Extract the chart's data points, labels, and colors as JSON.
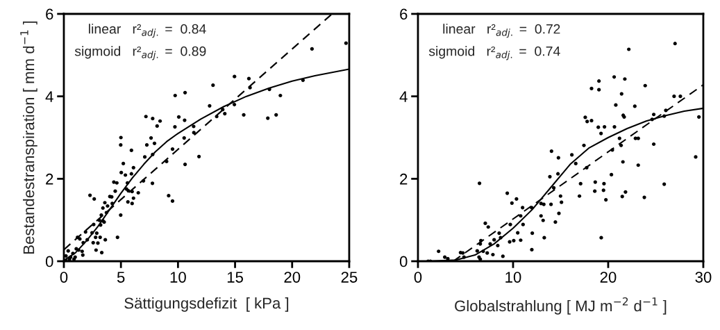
{
  "chart_data": [
    {
      "type": "scatter",
      "xlabel": "Sättigungsdefizit  [ kPa ]",
      "ylabel": "Bestandestranspiration [ mm d$^{−1}$ ]",
      "xlim": [
        0,
        25
      ],
      "xticks": [
        0,
        5,
        10,
        15,
        20,
        25
      ],
      "ylim": [
        0,
        6
      ],
      "yticks": [
        0,
        2,
        4,
        6
      ],
      "grid": false,
      "annotations": [
        "linear   r²$_{adj.}$ =  0.84",
        "sigmoid   r²$_{adj.}$ =  0.89"
      ],
      "series": [
        {
          "color": "#000000",
          "marker": "circle",
          "x": [
            9.75,
            10.62,
            7.19,
            7.78,
            8.43,
            8.17,
            10.07,
            10.58,
            9.73,
            11.37,
            11.39,
            10.54,
            9.52,
            9.0,
            10.62,
            11.84,
            5.0,
            4.98,
            5.92,
            7.27,
            7.64,
            7.94,
            7.78,
            7.09,
            5.21,
            6.1,
            5.03,
            5.39,
            5.92,
            4.38,
            4.64,
            5.57,
            6.97,
            7.76,
            4.5,
            5.49,
            5.65,
            5.98,
            6.52,
            4.19,
            4.03,
            6.1,
            5.61,
            5.98,
            2.29,
            2.66,
            9.18,
            9.52,
            3.59,
            3.83,
            4.24,
            3.42,
            3.73,
            3.28,
            3.42,
            3.12,
            3.53,
            2.61,
            3.22,
            4.98,
            1.9,
            2.47,
            2.88,
            1.2,
            1.4,
            2.78,
            3.18,
            3.63,
            4.7,
            2.05,
            1.7,
            2.57,
            2.98,
            2.82,
            3.32,
            1.09,
            1.3,
            1.6,
            1.66,
            0.38,
            0.79,
            0.18,
            0.59,
            0.99,
            0.49,
            0.89,
            0.18,
            12.77,
            13.07,
            13.92,
            14.1,
            13.39,
            14.94,
            14.95,
            16.21,
            16.31,
            15.76,
            18.01,
            18.97,
            17.87,
            18.6,
            20.95,
            21.74,
            24.72
          ],
          "values": [
            4.02,
            4.09,
            3.51,
            3.46,
            3.4,
            3.28,
            3.5,
            3.42,
            3.26,
            3.27,
            3.12,
            2.99,
            2.72,
            2.42,
            2.35,
            2.54,
            3.0,
            2.82,
            2.69,
            2.82,
            2.99,
            2.86,
            2.59,
            2.53,
            2.37,
            2.27,
            2.15,
            2.09,
            2.12,
            1.92,
            1.9,
            1.9,
            1.95,
            1.89,
            1.7,
            1.75,
            1.71,
            1.69,
            1.66,
            1.56,
            1.57,
            1.53,
            1.44,
            1.4,
            1.6,
            1.51,
            1.59,
            1.46,
            1.42,
            1.34,
            1.4,
            1.29,
            1.18,
            1.12,
            0.98,
            0.99,
            0.95,
            0.89,
            0.88,
            1.12,
            0.71,
            0.69,
            0.68,
            0.58,
            0.54,
            0.58,
            0.58,
            0.52,
            0.58,
            0.52,
            0.45,
            0.45,
            0.44,
            0.27,
            0.21,
            0.3,
            0.27,
            0.24,
            0.15,
            0.25,
            0.19,
            0.13,
            0.1,
            0.1,
            0.05,
            0.05,
            0.02,
            3.77,
            4.27,
            3.68,
            3.58,
            3.51,
            3.8,
            4.48,
            4.43,
            4.21,
            3.55,
            4.17,
            4.02,
            3.47,
            3.55,
            4.39,
            5.15,
            5.29
          ]
        },
        {
          "type": "line",
          "color": "#000000",
          "line_style": "dashed",
          "x": [
            0,
            23.5
          ],
          "values": [
            0.28,
            6.0
          ]
        },
        {
          "type": "line",
          "color": "#000000",
          "line_style": "solid",
          "x": [
            0,
            1,
            2,
            3,
            4,
            5,
            6,
            7,
            8,
            9,
            10,
            12,
            14,
            16,
            18,
            20,
            22,
            25
          ],
          "values": [
            0.02,
            0.2,
            0.5,
            0.85,
            1.25,
            1.65,
            2.02,
            2.35,
            2.65,
            2.9,
            3.1,
            3.45,
            3.75,
            4.0,
            4.2,
            4.37,
            4.5,
            4.66
          ]
        }
      ]
    },
    {
      "type": "scatter",
      "xlabel": "Globalstrahlung [ MJ m$^{−2}$ d$^{−1}$ ]",
      "xlim": [
        0,
        30
      ],
      "xticks": [
        0,
        10,
        20,
        30
      ],
      "ylim": [
        0,
        6
      ],
      "yticks": [
        0,
        2,
        4,
        6
      ],
      "grid": false,
      "annotations": [
        "linear   r²$_{adj.}$ =  0.72",
        "sigmoid   r²$_{adj.}$ =  0.74"
      ],
      "series": [
        {
          "color": "#000000",
          "marker": "circle",
          "x": [
            1.31,
            1.07,
            2.17,
            2.82,
            3.14,
            4.48,
            4.72,
            4.84,
            6.23,
            6.47,
            6.42,
            6.55,
            6.62,
            6.55,
            6.86,
            7.28,
            7.88,
            8.93,
            7.08,
            7.39,
            7.59,
            8.01,
            8.39,
            8.54,
            8.69,
            9.39,
            9.64,
            9.88,
            10.07,
            9.71,
            10.36,
            10.49,
            10.8,
            11.0,
            11.05,
            10.8,
            11.97,
            12.02,
            11.95,
            12.94,
            13.16,
            12.94,
            13.23,
            13.28,
            13.99,
            14.04,
            13.87,
            14.28,
            14.77,
            14.72,
            14.99,
            15.09,
            14.82,
            14.45,
            16.18,
            16.59,
            17.45,
            17.74,
            17.1,
            16.98,
            17.59,
            17.79,
            18.25,
            18.25,
            19.03,
            19.03,
            18.96,
            19.61,
            19.25,
            18.64,
            18.59,
            19.56,
            19.51,
            19.76,
            19.27,
            20.34,
            20.44,
            20.63,
            20.66,
            20.8,
            21.19,
            21.36,
            21.41,
            21.58,
            21.68,
            21.75,
            22.17,
            21.55,
            21.82,
            21.48,
            22.8,
            22.87,
            23.16,
            23.16,
            23.89,
            23.8,
            24.62,
            24.79,
            24.79,
            25.89,
            26.06,
            25.89,
            26.93,
            27.59,
            27.03,
            29.2,
            29.54
          ],
          "values": [
            0.0,
            0.0,
            0.24,
            0.1,
            0.06,
            0.21,
            0.2,
            0.1,
            0.25,
            1.89,
            0.1,
            0.05,
            0.5,
            0.42,
            0.24,
            0.2,
            0.16,
            0.12,
            0.92,
            0.83,
            0.42,
            0.52,
            0.38,
            0.68,
            0.57,
            1.65,
            0.47,
            1.41,
            0.5,
            0.89,
            1.51,
            0.69,
            0.51,
            1.3,
            0.89,
            1.1,
            0.28,
            0.68,
            1.3,
            1.1,
            0.99,
            1.4,
            1.38,
            0.57,
            1.38,
            2.67,
            2.05,
            1.78,
            2.51,
            2.12,
            1.58,
            1.43,
            1.16,
            0.95,
            2.58,
            2.37,
            2.81,
            2.27,
            1.88,
            1.58,
            3.49,
            3.39,
            3.41,
            4.19,
            4.37,
            4.16,
            3.25,
            3.26,
            3.1,
            1.92,
            1.7,
            1.88,
            1.72,
            1.49,
            0.57,
            2.1,
            2.7,
            4.47,
            3.26,
            3.79,
            2.98,
            2.81,
            4.06,
            3.54,
            3.5,
            4.42,
            5.14,
            2.41,
            1.68,
            1.57,
            3.76,
            2.98,
            2.98,
            2.33,
            4.26,
            1.55,
            3.44,
            3.56,
            2.84,
            3.52,
            3.66,
            1.87,
            4.0,
            4.0,
            5.28,
            2.53,
            3.5
          ]
        },
        {
          "type": "line",
          "color": "#000000",
          "line_style": "dashed",
          "x": [
            3.7,
            30
          ],
          "values": [
            0.0,
            4.28
          ]
        },
        {
          "type": "line",
          "color": "#000000",
          "line_style": "solid",
          "x": [
            1,
            4,
            6,
            8,
            10,
            12,
            14,
            16,
            18,
            20,
            22,
            24,
            26,
            28,
            30
          ],
          "values": [
            0.0,
            0.03,
            0.15,
            0.42,
            0.8,
            1.25,
            1.8,
            2.35,
            2.75,
            3.0,
            3.22,
            3.4,
            3.53,
            3.64,
            3.71
          ]
        }
      ]
    }
  ]
}
